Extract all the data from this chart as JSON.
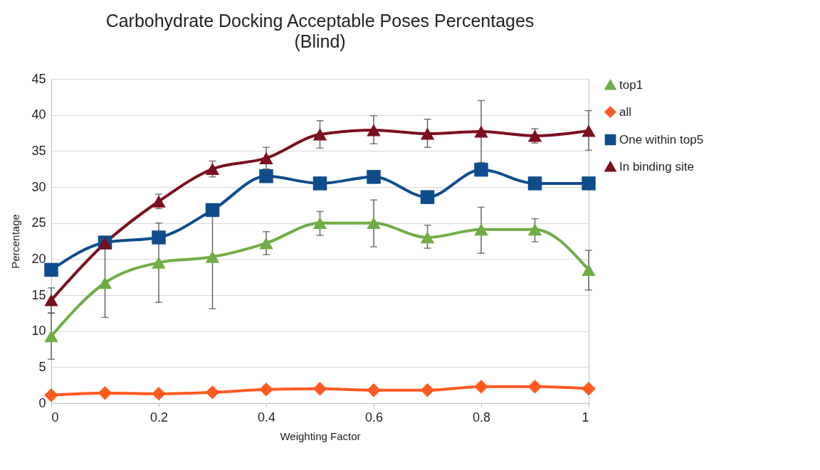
{
  "chart_data": {
    "type": "line",
    "title": "Carbohydrate Docking Acceptable Poses Percentages",
    "subtitle": "(Blind)",
    "xlabel": "Weighting Factor",
    "ylabel": "Percentage",
    "x": [
      0,
      0.1,
      0.2,
      0.3,
      0.4,
      0.5,
      0.6,
      0.7,
      0.8,
      0.9,
      1
    ],
    "xlim": [
      0,
      1
    ],
    "xticks": [
      0,
      0.2,
      0.4,
      0.6,
      0.8,
      1
    ],
    "ylim": [
      0,
      45
    ],
    "yticks": [
      0,
      5,
      10,
      15,
      20,
      25,
      30,
      35,
      40,
      45
    ],
    "grid": "y",
    "legend": "right",
    "series": [
      {
        "name": "top1",
        "color": "#70ad47",
        "marker": "triangle",
        "values": [
          9.3,
          16.7,
          19.5,
          20.3,
          22.2,
          25.0,
          25.0,
          23.0,
          24.1,
          24.1,
          18.5
        ],
        "errors": [
          [
            6.1,
            12.5
          ],
          [
            11.9,
            21.5
          ],
          [
            14.0,
            25.0
          ],
          [
            13.1,
            27.6
          ],
          [
            20.6,
            23.8
          ],
          [
            23.3,
            26.6
          ],
          [
            21.7,
            28.2
          ],
          [
            21.5,
            24.7
          ],
          [
            20.8,
            27.2
          ],
          [
            22.4,
            25.6
          ],
          [
            15.7,
            21.2
          ]
        ]
      },
      {
        "name": "all",
        "color": "#ff5a1f",
        "marker": "diamond",
        "values": [
          1.1,
          1.4,
          1.3,
          1.5,
          1.9,
          2.0,
          1.8,
          1.8,
          2.3,
          2.3,
          2.0
        ]
      },
      {
        "name": "One within top5",
        "color": "#0f4c8c",
        "marker": "square",
        "values": [
          18.5,
          22.3,
          23.0,
          26.8,
          31.5,
          30.5,
          31.4,
          28.6,
          32.4,
          30.5,
          30.5
        ]
      },
      {
        "name": "In binding site",
        "color": "#7b0f1e",
        "marker": "triangle",
        "values": [
          14.3,
          22.2,
          28.0,
          32.5,
          34.0,
          37.3,
          37.9,
          37.4,
          37.7,
          37.1,
          37.8
        ],
        "errors": [
          [
            12.5,
            16.0
          ],
          null,
          [
            27.0,
            29.0
          ],
          [
            31.4,
            33.6
          ],
          [
            32.5,
            35.5
          ],
          [
            35.4,
            39.2
          ],
          [
            36.0,
            39.9
          ],
          [
            35.5,
            39.4
          ],
          [
            33.4,
            42.0
          ],
          [
            36.1,
            38.1
          ],
          [
            35.1,
            40.6
          ]
        ]
      }
    ]
  }
}
